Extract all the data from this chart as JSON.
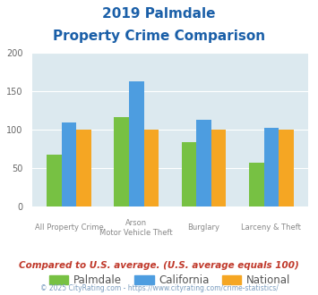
{
  "title_line1": "2019 Palmdale",
  "title_line2": "Property Crime Comparison",
  "cat_labels_row1": [
    "All Property Crime",
    "Arson",
    "Burglary",
    "Larceny & Theft"
  ],
  "cat_labels_row2": [
    "",
    "Motor Vehicle Theft",
    "",
    ""
  ],
  "groups": [
    {
      "name": "Palmdale",
      "color": "#77c143",
      "values": [
        68,
        116,
        84,
        57
      ]
    },
    {
      "name": "California",
      "color": "#4d9de0",
      "values": [
        110,
        163,
        113,
        103
      ]
    },
    {
      "name": "National",
      "color": "#f5a623",
      "values": [
        100,
        100,
        100,
        100
      ]
    }
  ],
  "ylim": [
    0,
    200
  ],
  "yticks": [
    0,
    50,
    100,
    150,
    200
  ],
  "plot_bg": "#dce9ef",
  "title_color": "#1a5fa8",
  "footer_note": "Compared to U.S. average. (U.S. average equals 100)",
  "footer_color": "#c0392b",
  "credit": "© 2025 CityRating.com - https://www.cityrating.com/crime-statistics/",
  "credit_color": "#7a9cbf",
  "grid_color": "#ffffff",
  "bar_width": 0.22
}
